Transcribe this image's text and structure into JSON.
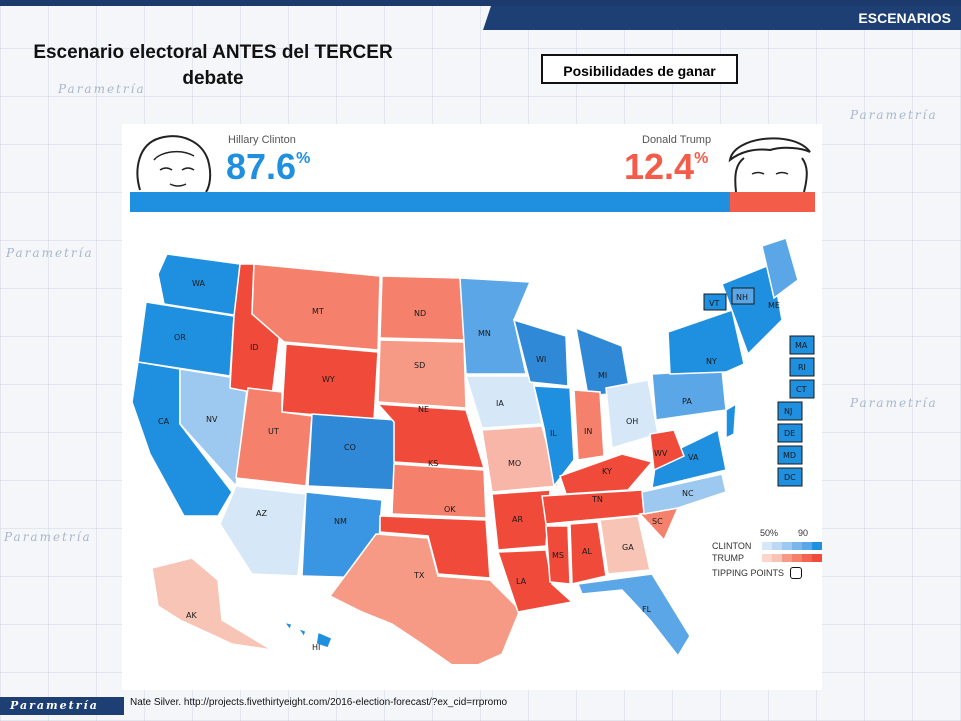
{
  "header": {
    "section": "ESCENARIOS"
  },
  "title": "Escenario electoral ANTES del TERCER debate",
  "subtitle_box": "Posibilidades de ganar",
  "clinton": {
    "name": "Hillary Clinton",
    "pct": "87.6",
    "pct_sign": "%",
    "color": "#1f8fdf"
  },
  "trump": {
    "name": "Donald Trump",
    "pct": "12.4",
    "pct_sign": "%",
    "color": "#f25c48"
  },
  "bar": {
    "clinton_share": 0.876,
    "trump_share": 0.124
  },
  "legend": {
    "clinton_label": "CLINTON",
    "trump_label": "TRUMP",
    "tick_low": "50%",
    "tick_high": "90",
    "tipping": "TIPPING POINTS"
  },
  "states": [
    "WA",
    "OR",
    "CA",
    "NV",
    "ID",
    "MT",
    "WY",
    "UT",
    "AZ",
    "CO",
    "NM",
    "ND",
    "SD",
    "NE",
    "KS",
    "OK",
    "TX",
    "MN",
    "IA",
    "MO",
    "AR",
    "LA",
    "WI",
    "IL",
    "MI",
    "IN",
    "OH",
    "KY",
    "TN",
    "MS",
    "AL",
    "GA",
    "FL",
    "SC",
    "NC",
    "VA",
    "WV",
    "PA",
    "NY",
    "ME",
    "AK",
    "HI",
    "VT",
    "NH",
    "MA",
    "RI",
    "CT",
    "NJ",
    "DE",
    "MD",
    "DC"
  ],
  "source": "Nate Silver. http://projects.fivethirtyeight.com/2016-election-forecast/?ex_cid=rrpromo",
  "brand": "Parametría",
  "watermark": "Parametría"
}
